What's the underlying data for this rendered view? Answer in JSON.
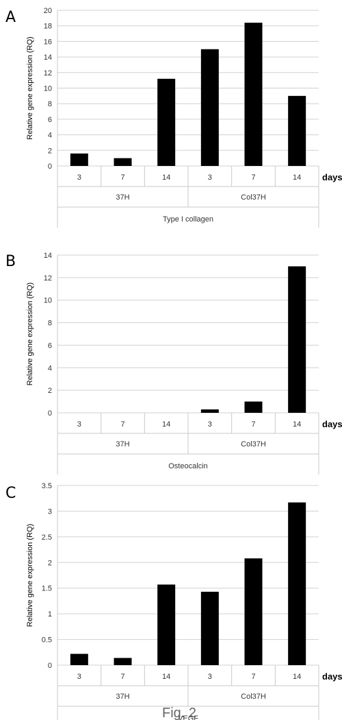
{
  "figure_caption": "Fig. 2",
  "chart_data": [
    {
      "panel": "A",
      "type": "bar",
      "ylabel": "Relative gene expression (RQ)",
      "ylim": [
        0,
        20
      ],
      "yticks": [
        0,
        2,
        4,
        6,
        8,
        10,
        12,
        14,
        16,
        18,
        20
      ],
      "categories": [
        "3",
        "7",
        "14",
        "3",
        "7",
        "14"
      ],
      "groups": [
        "37H",
        "Col37H"
      ],
      "unit_label": "days",
      "gene_label": "Type I collagen",
      "values": [
        1.6,
        1.0,
        11.2,
        15.0,
        18.4,
        9.0
      ],
      "grid": true,
      "bar_color": "#000000"
    },
    {
      "panel": "B",
      "type": "bar",
      "ylabel": "Relative gene expression (RQ)",
      "ylim": [
        0,
        14
      ],
      "yticks": [
        0,
        2,
        4,
        6,
        8,
        10,
        12,
        14
      ],
      "categories": [
        "3",
        "7",
        "14",
        "3",
        "7",
        "14"
      ],
      "groups": [
        "37H",
        "Col37H"
      ],
      "unit_label": "days",
      "gene_label": "Osteocalcin",
      "values": [
        0,
        0,
        0,
        0.3,
        1.0,
        13.0
      ],
      "grid": true,
      "bar_color": "#000000"
    },
    {
      "panel": "C",
      "type": "bar",
      "ylabel": "Relative gene expression (RQ)",
      "ylim": [
        0,
        3.5
      ],
      "yticks": [
        0,
        0.5,
        1,
        1.5,
        2,
        2.5,
        3,
        3.5
      ],
      "categories": [
        "3",
        "7",
        "14",
        "3",
        "7",
        "14"
      ],
      "groups": [
        "37H",
        "Col37H"
      ],
      "unit_label": "days",
      "gene_label": "VEGF",
      "values": [
        0.22,
        0.14,
        1.57,
        1.43,
        2.08,
        3.17
      ],
      "grid": true,
      "bar_color": "#000000"
    }
  ]
}
